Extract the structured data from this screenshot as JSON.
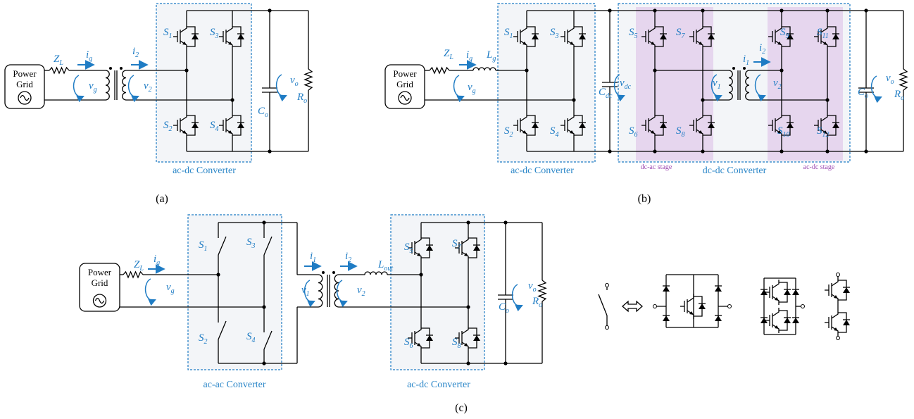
{
  "panels": [
    {
      "caption": "(a)",
      "source": [
        "Power",
        "Grid"
      ],
      "converters": [
        "ac-dc Converter"
      ],
      "symbols": [
        {
          "t": "Z",
          "s": "L"
        },
        {
          "t": "i",
          "s": "g"
        },
        {
          "t": "i",
          "s": "2"
        },
        {
          "t": "v",
          "s": "g"
        },
        {
          "t": "v",
          "s": "2"
        },
        {
          "t": "S",
          "s": "1"
        },
        {
          "t": "S",
          "s": "3"
        },
        {
          "t": "S",
          "s": "2"
        },
        {
          "t": "S",
          "s": "4"
        },
        {
          "t": "C",
          "s": "o"
        },
        {
          "t": "v",
          "s": "o"
        },
        {
          "t": "R",
          "s": "o"
        }
      ]
    },
    {
      "caption": "(b)",
      "source": [
        "Power",
        "Grid"
      ],
      "converters": [
        "ac-dc Converter",
        "dc-dc Converter"
      ],
      "stages": [
        "dc-ac stage",
        "ac-dc stage"
      ],
      "symbols": [
        {
          "t": "Z",
          "s": "L"
        },
        {
          "t": "i",
          "s": "g"
        },
        {
          "t": "L",
          "s": "g"
        },
        {
          "t": "v",
          "s": "g"
        },
        {
          "t": "S",
          "s": "1"
        },
        {
          "t": "S",
          "s": "3"
        },
        {
          "t": "S",
          "s": "2"
        },
        {
          "t": "S",
          "s": "4"
        },
        {
          "t": "C",
          "s": "dc"
        },
        {
          "t": "v",
          "s": "dc"
        },
        {
          "t": "S",
          "s": "5"
        },
        {
          "t": "S",
          "s": "7"
        },
        {
          "t": "S",
          "s": "6"
        },
        {
          "t": "S",
          "s": "8"
        },
        {
          "t": "i",
          "s": "1"
        },
        {
          "t": "i",
          "s": "2"
        },
        {
          "t": "v",
          "s": "1"
        },
        {
          "t": "v",
          "s": "2"
        },
        {
          "t": "S",
          "s": "9"
        },
        {
          "t": "S",
          "s": "11"
        },
        {
          "t": "S",
          "s": "10"
        },
        {
          "t": "S",
          "s": "12"
        },
        {
          "t": "C",
          "s": "o"
        },
        {
          "t": "v",
          "s": "o"
        },
        {
          "t": "R",
          "s": "o"
        }
      ]
    },
    {
      "caption": "(c)",
      "source": [
        "Power",
        "Grid"
      ],
      "converters": [
        "ac-ac Converter",
        "ac-dc Converter"
      ],
      "symbols": [
        {
          "t": "Z",
          "s": "L"
        },
        {
          "t": "i",
          "s": "g"
        },
        {
          "t": "v",
          "s": "g"
        },
        {
          "t": "S",
          "s": "1"
        },
        {
          "t": "S",
          "s": "3"
        },
        {
          "t": "S",
          "s": "2"
        },
        {
          "t": "S",
          "s": "4"
        },
        {
          "t": "i",
          "s": "1"
        },
        {
          "t": "i",
          "s": "2"
        },
        {
          "t": "L",
          "s": "out"
        },
        {
          "t": "v",
          "s": "1"
        },
        {
          "t": "v",
          "s": "2"
        },
        {
          "t": "S",
          "s": "5"
        },
        {
          "t": "S",
          "s": "7"
        },
        {
          "t": "S",
          "s": "6"
        },
        {
          "t": "S",
          "s": "8"
        },
        {
          "t": "C",
          "s": "o"
        },
        {
          "t": "v",
          "s": "o"
        },
        {
          "t": "R",
          "s": "o"
        }
      ]
    }
  ]
}
